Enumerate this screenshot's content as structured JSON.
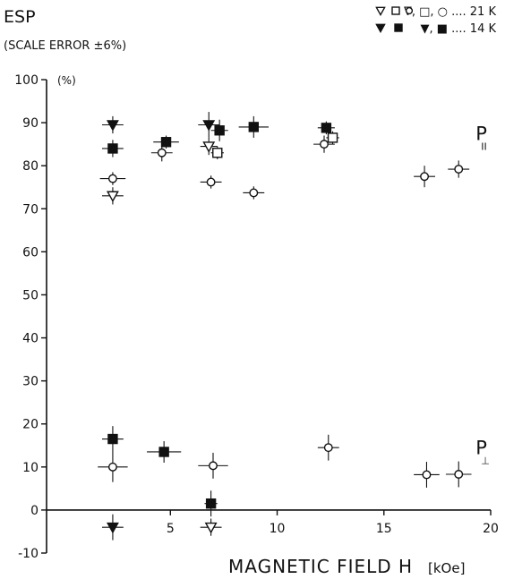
{
  "chart_data": {
    "type": "scatter",
    "title": "ESP",
    "subtitle": "(SCALE ERROR ±6%)",
    "xlabel": "MAGNETIC FIELD  H",
    "xunit": "[kOe]",
    "ylabel": "",
    "yunit": "(%)",
    "xlim": [
      -0.8,
      20
    ],
    "ylim": [
      -10,
      100
    ],
    "x_ticks": [
      5,
      10,
      15,
      20
    ],
    "y_ticks": [
      -10,
      0,
      10,
      20,
      30,
      40,
      50,
      60,
      70,
      80,
      90,
      100
    ],
    "grid": false,
    "legend": {
      "placement": "top-right",
      "rows": [
        {
          "symbols": [
            "open-triangle",
            "open-square",
            "open-circle"
          ],
          "text": "∇, □, ○ .... 21 K"
        },
        {
          "symbols": [
            "filled-triangle",
            "filled-square"
          ],
          "text": "▼, ■    .... 14 K"
        }
      ]
    },
    "annotations": [
      {
        "text": "P",
        "sub": "II",
        "x": 19.3,
        "y": 86
      },
      {
        "text": "P",
        "sub": "⊥",
        "x": 19.3,
        "y": 13
      }
    ],
    "series": [
      {
        "marker": "open-triangle",
        "points": [
          {
            "x": 2.3,
            "y": 73,
            "ex": 0.5,
            "ey": 2
          },
          {
            "x": 6.8,
            "y": 84.5,
            "ex": 0.4,
            "ey": 2
          },
          {
            "x": 6.9,
            "y": -4,
            "ex": 0.5,
            "ey": 2
          }
        ]
      },
      {
        "marker": "open-square",
        "points": [
          {
            "x": 7.2,
            "y": 83,
            "ex": 0.3,
            "ey": 1.5
          },
          {
            "x": 12.6,
            "y": 86.5,
            "ex": 0.3,
            "ey": 1.5
          }
        ]
      },
      {
        "marker": "open-circle",
        "points": [
          {
            "x": 2.3,
            "y": 77,
            "ex": 0.6,
            "ey": 1.5
          },
          {
            "x": 4.6,
            "y": 83,
            "ex": 0.5,
            "ey": 2
          },
          {
            "x": 6.9,
            "y": 76.2,
            "ex": 0.5,
            "ey": 1.5
          },
          {
            "x": 8.9,
            "y": 73.7,
            "ex": 0.5,
            "ey": 1.5
          },
          {
            "x": 12.2,
            "y": 85,
            "ex": 0.5,
            "ey": 2
          },
          {
            "x": 16.9,
            "y": 77.5,
            "ex": 0.5,
            "ey": 2.5
          },
          {
            "x": 18.5,
            "y": 79.2,
            "ex": 0.5,
            "ey": 2
          },
          {
            "x": 2.3,
            "y": 10,
            "ex": 0.7,
            "ey": 3.5
          },
          {
            "x": 7.0,
            "y": 10.3,
            "ex": 0.7,
            "ey": 3
          },
          {
            "x": 12.4,
            "y": 14.5,
            "ex": 0.5,
            "ey": 3
          },
          {
            "x": 17.0,
            "y": 8.2,
            "ex": 0.6,
            "ey": 3
          },
          {
            "x": 18.5,
            "y": 8.3,
            "ex": 0.6,
            "ey": 3
          }
        ]
      },
      {
        "marker": "filled-triangle",
        "points": [
          {
            "x": 2.3,
            "y": 89.5,
            "ex": 0.5,
            "ey": 2
          },
          {
            "x": 6.8,
            "y": 89.5,
            "ex": 0.5,
            "ey": 3
          },
          {
            "x": 2.3,
            "y": -4,
            "ex": 0.5,
            "ey": 3
          }
        ]
      },
      {
        "marker": "filled-square",
        "points": [
          {
            "x": 2.3,
            "y": 84,
            "ex": 0.5,
            "ey": 2
          },
          {
            "x": 4.8,
            "y": 85.5,
            "ex": 0.6,
            "ey": 1.5
          },
          {
            "x": 7.3,
            "y": 88.2,
            "ex": 0.4,
            "ey": 2.5
          },
          {
            "x": 8.9,
            "y": 89,
            "ex": 0.7,
            "ey": 2.5
          },
          {
            "x": 12.3,
            "y": 88.8,
            "ex": 0.4,
            "ey": 1.5
          },
          {
            "x": 2.3,
            "y": 16.5,
            "ex": 0.5,
            "ey": 3
          },
          {
            "x": 4.7,
            "y": 13.5,
            "ex": 0.8,
            "ey": 2.5
          },
          {
            "x": 6.9,
            "y": 1.5,
            "ex": 0.3,
            "ey": 3
          }
        ]
      }
    ]
  }
}
